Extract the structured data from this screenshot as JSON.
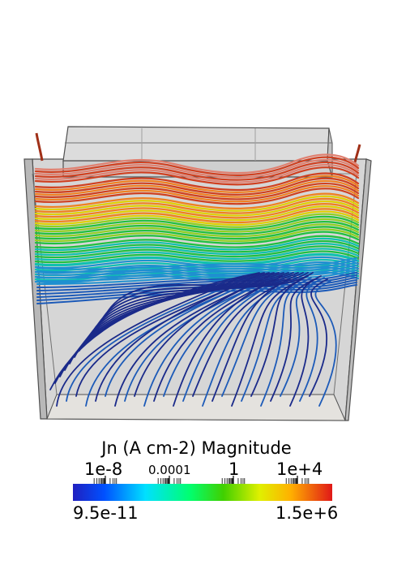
{
  "colorbar": {
    "title": "Jn (A cm-2) Magnitude",
    "min_label": "9.5e-11",
    "max_label": "1.5e+6",
    "ticks": [
      "1e-8",
      "0.0001",
      "1",
      "1e+4"
    ],
    "colormap": [
      "#2020a0",
      "#0000ff",
      "#00c8ff",
      "#00ff80",
      "#40c000",
      "#c8e000",
      "#ffe000",
      "#ff8000",
      "#e02020"
    ]
  },
  "scene": {
    "background": "#ffffff",
    "box_fill": "#c8c8c8",
    "box_edge": "#606060",
    "streamline_colors": [
      "#1a2a8a",
      "#1c5ab8",
      "#1e90d0",
      "#10c0b0",
      "#20c040",
      "#90d020",
      "#e0d000",
      "#f08020",
      "#d04020",
      "#e08070"
    ]
  }
}
